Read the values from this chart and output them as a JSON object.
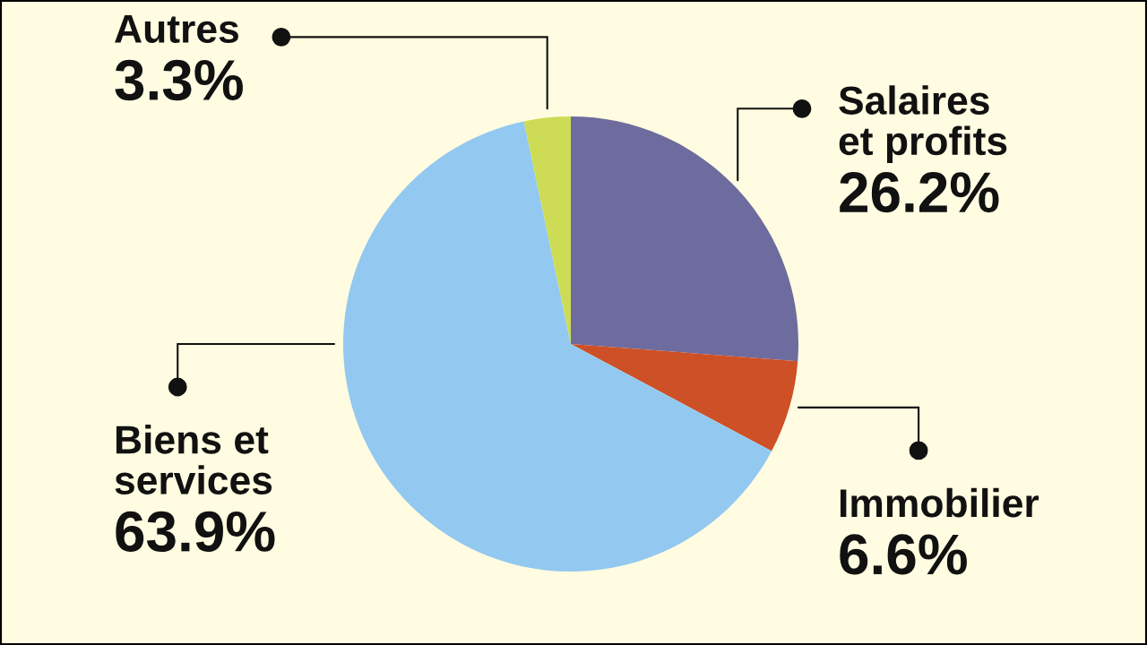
{
  "chart_data": {
    "type": "pie",
    "categories": [
      "Salaires\net profits",
      "Immobilier",
      "Biens et\nservices",
      "Autres"
    ],
    "values": [
      26.2,
      6.6,
      63.9,
      3.3
    ],
    "value_labels": [
      "26.2%",
      "6.6%",
      "63.9%",
      "3.3%"
    ],
    "colors": [
      "#6e6c9e",
      "#cd5027",
      "#93c9f0",
      "#cddc54"
    ]
  }
}
